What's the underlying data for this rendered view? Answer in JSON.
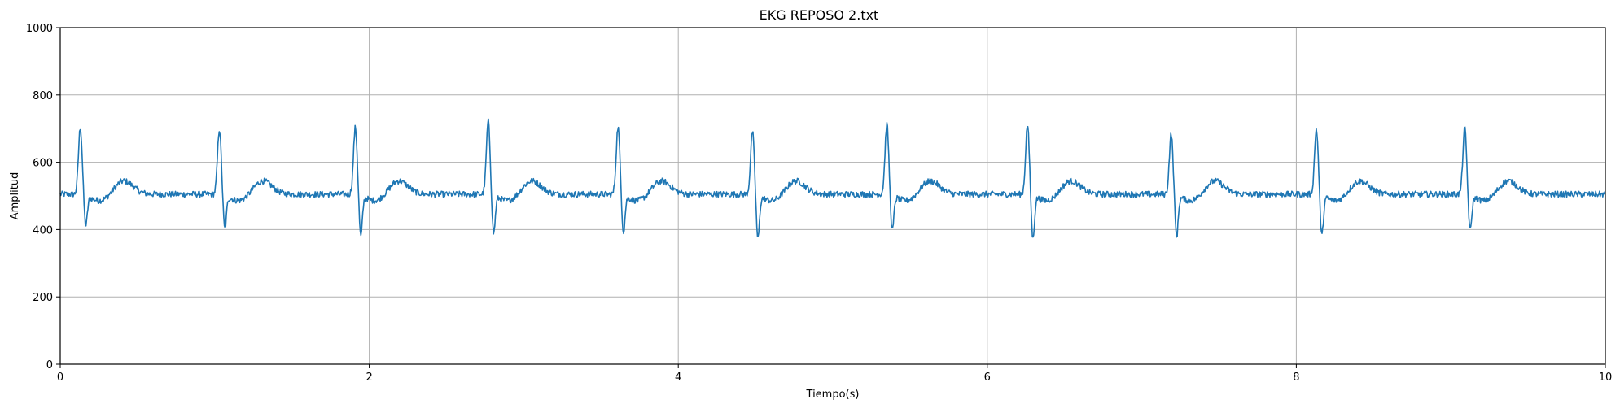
{
  "chart_data": {
    "type": "line",
    "title": "EKG REPOSO 2.txt",
    "xlabel": "Tiempo(s)",
    "ylabel": "Amplitud",
    "xlim": [
      0,
      10
    ],
    "ylim": [
      0,
      1000
    ],
    "x_ticks": [
      0,
      2,
      4,
      6,
      8,
      10
    ],
    "y_ticks": [
      0,
      200,
      400,
      600,
      800,
      1000
    ],
    "grid": true,
    "line_color": "#1f77b4",
    "grid_color": "#b0b0b0",
    "baseline": 505,
    "beats": [
      {
        "t": 0.13,
        "peak": 705,
        "trough": 415
      },
      {
        "t": 1.03,
        "peak": 700,
        "trough": 405
      },
      {
        "t": 1.91,
        "peak": 705,
        "trough": 383
      },
      {
        "t": 2.77,
        "peak": 723,
        "trough": 392
      },
      {
        "t": 3.61,
        "peak": 706,
        "trough": 397
      },
      {
        "t": 4.48,
        "peak": 692,
        "trough": 376
      },
      {
        "t": 5.35,
        "peak": 714,
        "trough": 400
      },
      {
        "t": 6.26,
        "peak": 712,
        "trough": 375
      },
      {
        "t": 7.19,
        "peak": 685,
        "trough": 383
      },
      {
        "t": 8.13,
        "peak": 700,
        "trough": 385
      },
      {
        "t": 9.09,
        "peak": 702,
        "trough": 400
      }
    ],
    "t_wave_amplitude": 40,
    "noise_amplitude": 9
  }
}
